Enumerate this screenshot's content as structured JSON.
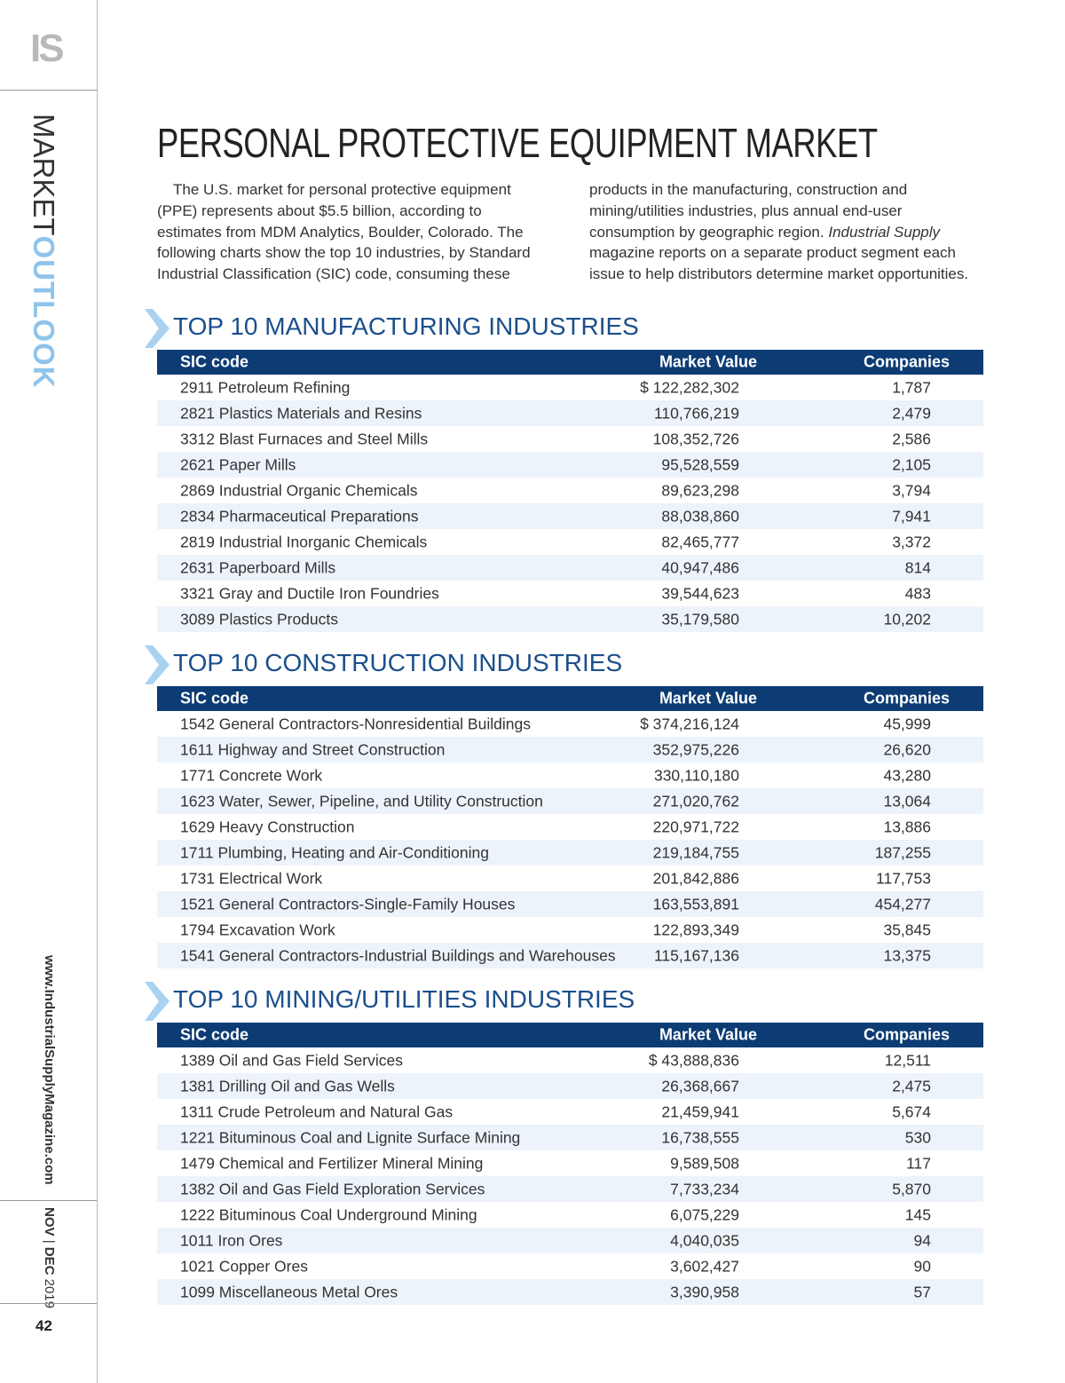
{
  "sidebar": {
    "logo": "IS",
    "section_a": "MARKET",
    "section_b": "OUTLOOK",
    "url": "www.IndustrialSupplyMagazine.com",
    "issue_month_a": "NOV",
    "issue_separator": "|",
    "issue_month_b": "DEC",
    "issue_year": "2019",
    "page_number": "42"
  },
  "article": {
    "title": "PERSONAL PROTECTIVE EQUIPMENT MARKET",
    "intro": [
      "The U.S. market for personal protective equipment (PPE) represents about $5.5 billion, according to estimates from MDM Analytics, Boulder, Colorado. The following charts show the top 10 industries, by Standard Industrial Classification (SIC) code, consuming these products in the manufacturing, construction and mining/utilities industries, plus annual end-user consumption by geographic region. ",
      "Industrial Supply",
      " magazine reports on a separate product segment each issue to help distributors determine market opportunities."
    ]
  },
  "tables": [
    {
      "heading": "TOP 10 MANUFACTURING INDUSTRIES",
      "columns": [
        "SIC code",
        "Market Value",
        "Companies"
      ],
      "rows": [
        [
          "2911 Petroleum Refining",
          "$ 122,282,302",
          "1,787"
        ],
        [
          "2821 Plastics Materials and Resins",
          "110,766,219",
          "2,479"
        ],
        [
          "3312 Blast Furnaces and Steel Mills",
          "108,352,726",
          "2,586"
        ],
        [
          "2621 Paper Mills",
          "95,528,559",
          "2,105"
        ],
        [
          "2869 Industrial Organic Chemicals",
          "89,623,298",
          "3,794"
        ],
        [
          "2834 Pharmaceutical Preparations",
          "88,038,860",
          "7,941"
        ],
        [
          "2819 Industrial Inorganic Chemicals",
          "82,465,777",
          "3,372"
        ],
        [
          "2631 Paperboard Mills",
          "40,947,486",
          "814"
        ],
        [
          "3321 Gray and Ductile Iron Foundries",
          "39,544,623",
          "483"
        ],
        [
          "3089 Plastics Products",
          "35,179,580",
          "10,202"
        ]
      ]
    },
    {
      "heading": "TOP 10 CONSTRUCTION INDUSTRIES",
      "columns": [
        "SIC code",
        "Market Value",
        "Companies"
      ],
      "rows": [
        [
          "1542 General Contractors-Nonresidential Buildings",
          "$ 374,216,124",
          "45,999"
        ],
        [
          "1611 Highway and Street Construction",
          "352,975,226",
          "26,620"
        ],
        [
          "1771 Concrete Work",
          "330,110,180",
          "43,280"
        ],
        [
          "1623 Water, Sewer, Pipeline, and Utility Construction",
          "271,020,762",
          "13,064"
        ],
        [
          "1629 Heavy Construction",
          "220,971,722",
          "13,886"
        ],
        [
          "1711 Plumbing, Heating and Air-Conditioning",
          "219,184,755",
          "187,255"
        ],
        [
          "1731 Electrical Work",
          "201,842,886",
          "117,753"
        ],
        [
          "1521 General Contractors-Single-Family Houses",
          "163,553,891",
          "454,277"
        ],
        [
          "1794 Excavation Work",
          "122,893,349",
          "35,845"
        ],
        [
          "1541 General Contractors-Industrial Buildings and Warehouses",
          "115,167,136",
          "13,375"
        ]
      ]
    },
    {
      "heading": "TOP 10 MINING/UTILITIES INDUSTRIES",
      "columns": [
        "SIC code",
        "Market Value",
        "Companies"
      ],
      "rows": [
        [
          "1389 Oil and Gas Field Services",
          "$ 43,888,836",
          "12,511"
        ],
        [
          "1381 Drilling Oil and Gas Wells",
          "26,368,667",
          "2,475"
        ],
        [
          "1311 Crude Petroleum and Natural Gas",
          "21,459,941",
          "5,674"
        ],
        [
          "1221 Bituminous Coal and Lignite Surface Mining",
          "16,738,555",
          "530"
        ],
        [
          "1479 Chemical and Fertilizer Mineral Mining",
          "9,589,508",
          "117"
        ],
        [
          "1382 Oil and Gas Field Exploration Services",
          "7,733,234",
          "5,870"
        ],
        [
          "1222 Bituminous Coal Underground Mining",
          "6,075,229",
          "145"
        ],
        [
          "1011 Iron Ores",
          "4,040,035",
          "94"
        ],
        [
          "1021 Copper Ores",
          "3,602,427",
          "90"
        ],
        [
          "1099 Miscellaneous Metal Ores",
          "3,390,958",
          "57"
        ]
      ]
    }
  ]
}
